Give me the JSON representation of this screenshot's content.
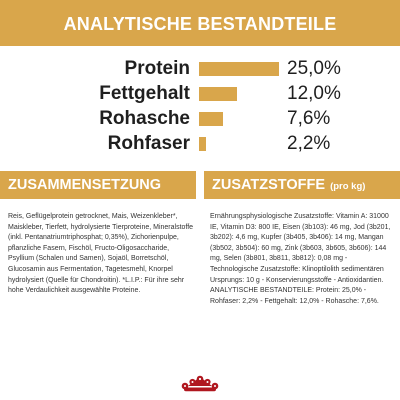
{
  "header": {
    "title": "ANALYTISCHE BESTANDTEILE"
  },
  "nutrients": [
    {
      "label": "Protein",
      "value": "25,0%",
      "level": 25.0
    },
    {
      "label": "Fettgehalt",
      "value": "12,0%",
      "level": 12.0
    },
    {
      "label": "Rohasche",
      "value": "7,6%",
      "level": 7.6
    },
    {
      "label": "Rohfaser",
      "value": "2,2%",
      "level": 2.2
    }
  ],
  "composition": {
    "title": "ZUSAMMENSETZUNG",
    "text": "Reis, Geflügelprotein getrocknet, Mais, Weizenkleber*, Maiskleber, Tierfett, hydrolysierte Tierproteine, Mineralstoffe (inkl. Pentanatriumtriphosphat; 0,35%), Zichorienpulpe, pflanzliche Fasern, Fischöl, Fructo-Oligosaccharide, Psyllium (Schalen und Samen), Sojaöl, Borretschöl, Glucosamin aus Fermentation, Tagetesmehl, Knorpel hydrolysiert (Quelle für Chondroitin). *L.I.P.: Für ihre sehr hohe Verdaulichkeit ausgewählte Proteine."
  },
  "additives": {
    "title": "ZUSATZSTOFFE",
    "suffix": "(pro kg)",
    "text": "Ernährungsphysiologische Zusatzstoffe: Vitamin A: 31000 IE, Vitamin D3: 800 IE, Eisen (3b103): 46 mg, Jod (3b201, 3b202): 4,6 mg, Kupfer (3b405, 3b406): 14 mg, Mangan (3b502, 3b504): 60 mg, Zink (3b603, 3b605, 3b606): 144 mg, Selen (3b801, 3b811, 3b812): 0,08 mg - Technologische Zusatzstoffe: Klinoptilolith sedimentären Ursprungs: 10 g - Konservierungsstoffe - Antioxidantien. ANALYTISCHE BESTANDTEILE: Protein: 25,0% - Rohfaser: 2,2% - Fettgehalt: 12,0% - Rohasche: 7,6%."
  },
  "colors": {
    "accent": "#d9a64b",
    "logo": "#b0171f"
  },
  "icons": {
    "logo": "crown-logo-icon"
  }
}
